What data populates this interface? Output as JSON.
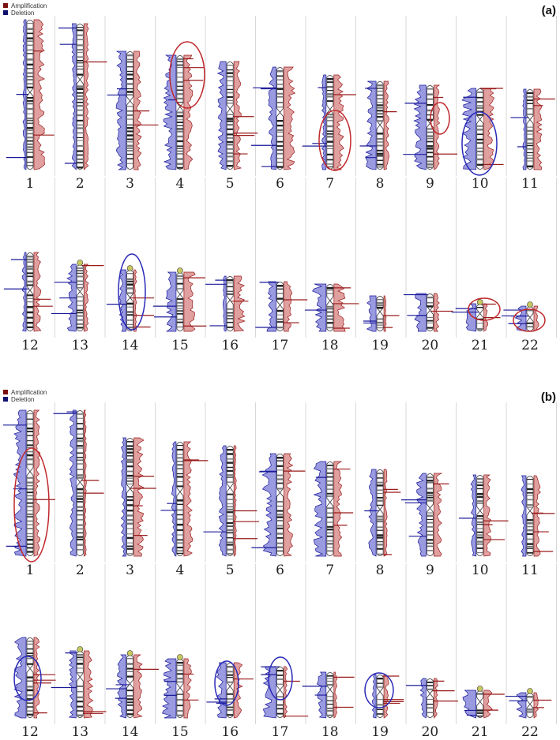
{
  "panels": [
    {
      "label": "(a)",
      "legend": [
        "Amplification",
        "Deletion"
      ],
      "chromosomes": [
        "1",
        "2",
        "3",
        "4",
        "5",
        "6",
        "7",
        "8",
        "9",
        "10",
        "11",
        "12",
        "13",
        "14",
        "15",
        "16",
        "17",
        "18",
        "19",
        "20",
        "21",
        "22"
      ]
    },
    {
      "label": "(b)",
      "legend": [
        "Amplification",
        "Deletion"
      ],
      "chromosomes": [
        "1",
        "2",
        "3",
        "4",
        "5",
        "6",
        "7",
        "8",
        "9",
        "10",
        "11",
        "12",
        "13",
        "14",
        "15",
        "16",
        "17",
        "18",
        "19",
        "20",
        "21",
        "22"
      ]
    }
  ]
}
